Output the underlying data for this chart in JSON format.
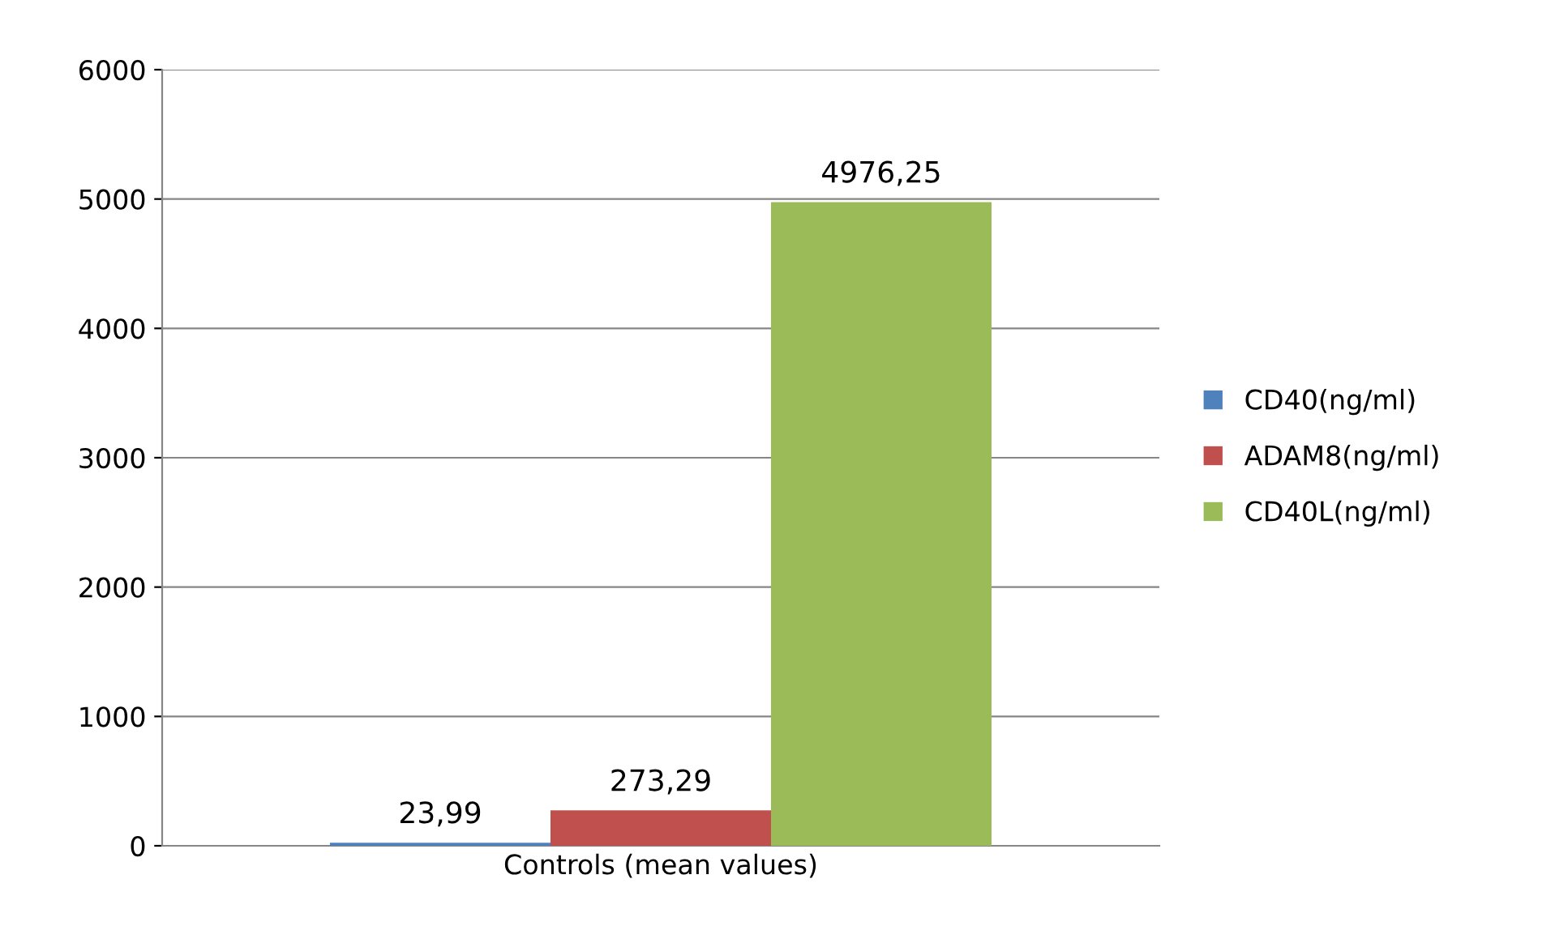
{
  "chart_data": {
    "type": "bar",
    "categories": [
      "Controls (mean values)"
    ],
    "series": [
      {
        "name": "CD40(ng/ml)",
        "color": "#4f81bd",
        "values": [
          23.99
        ],
        "value_labels": [
          "23,99"
        ]
      },
      {
        "name": "ADAM8(ng/ml)",
        "color": "#c0504d",
        "values": [
          273.29
        ],
        "value_labels": [
          "273,29"
        ]
      },
      {
        "name": "CD40L(ng/ml)",
        "color": "#9bbb59",
        "values": [
          4976.25
        ],
        "value_labels": [
          "4976,25"
        ]
      }
    ],
    "ylim": [
      0,
      6000
    ],
    "yticks": [
      0,
      1000,
      2000,
      3000,
      4000,
      5000,
      6000
    ],
    "grid": "y",
    "legend": "right"
  }
}
